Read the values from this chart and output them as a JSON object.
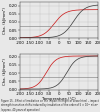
{
  "subplot1": {
    "ylabel": "Cha. (kJ/mm²)",
    "xlim": [
      -200,
      200
    ],
    "ylim": [
      0,
      0.22
    ],
    "yticks": [
      0.0,
      0.05,
      0.1,
      0.15,
      0.2
    ],
    "xticks": [
      -200,
      -150,
      -100,
      -50,
      0,
      50,
      100,
      150,
      200
    ],
    "hline_y": 0.075,
    "curve_unirr": {
      "x0": 75,
      "k": 0.035,
      "ymax": 0.205,
      "ymin": 0.003,
      "color": "#444444"
    },
    "curve_irr": {
      "x0": -25,
      "k": 0.035,
      "ymax": 0.175,
      "ymin": 0.003,
      "color": "#cc2222"
    }
  },
  "subplot2": {
    "ylabel": "Cha. (kJ/mm²)",
    "xlabel": "Temperature (°C)",
    "xlim": [
      -200,
      200
    ],
    "ylim": [
      0,
      0.22
    ],
    "yticks": [
      0.0,
      0.05,
      0.1,
      0.15,
      0.2
    ],
    "xticks": [
      -200,
      -150,
      -100,
      -50,
      0,
      50,
      100,
      150,
      200
    ],
    "hline_y": 0.075,
    "curve_unirr": {
      "x0": 40,
      "k": 0.04,
      "ymax": 0.205,
      "ymin": 0.003,
      "color": "#444444"
    },
    "curve_irr": {
      "x0": -65,
      "k": 0.04,
      "ymax": 0.205,
      "ymin": 0.003,
      "color": "#cc2222"
    }
  },
  "bg_color": "#e8e8e8",
  "grid_color": "#bbbbbb",
  "hline_color": "#777777",
  "font_size": 2.8,
  "caption_fontsize": 1.8,
  "caption": "Figure 15 - Effect of irradiation on the impact strength of vessel steel – impact strength transition shifts induced by irradiation of the order of 5 × 10¹⁹ n/cm² (approx. 40 years of operation)"
}
